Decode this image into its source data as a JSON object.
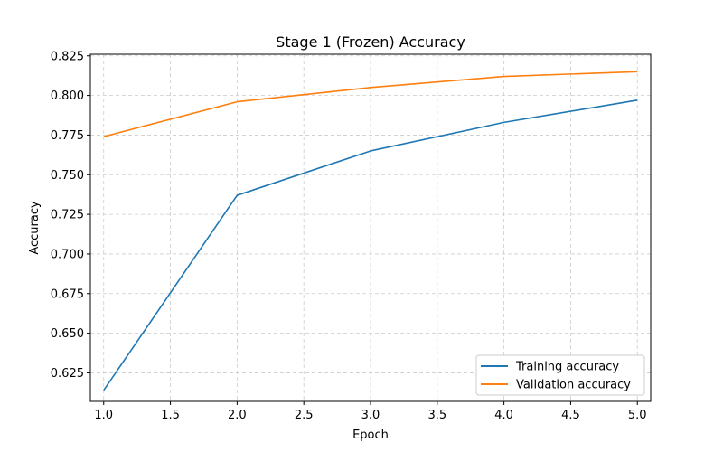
{
  "chart_data": {
    "type": "line",
    "title": "Stage 1 (Frozen) Accuracy",
    "xlabel": "Epoch",
    "ylabel": "Accuracy",
    "x": [
      1,
      2,
      3,
      4,
      5
    ],
    "series": [
      {
        "name": "Training accuracy",
        "values": [
          0.614,
          0.737,
          0.765,
          0.783,
          0.797
        ],
        "color": "#1f77b4"
      },
      {
        "name": "Validation accuracy",
        "values": [
          0.774,
          0.796,
          0.805,
          0.812,
          0.815
        ],
        "color": "#ff7f0e"
      }
    ],
    "xlim": [
      0.9,
      5.1
    ],
    "ylim": [
      0.607,
      0.826
    ],
    "xticks": [
      "1.0",
      "1.5",
      "2.0",
      "2.5",
      "3.0",
      "3.5",
      "4.0",
      "4.5",
      "5.0"
    ],
    "yticks": [
      "0.625",
      "0.650",
      "0.675",
      "0.700",
      "0.725",
      "0.750",
      "0.775",
      "0.800",
      "0.825"
    ],
    "grid": true,
    "legend_position": "lower-right"
  }
}
